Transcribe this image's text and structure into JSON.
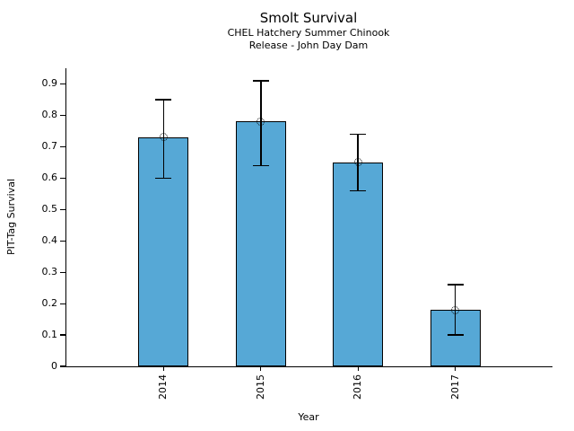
{
  "chart_data": {
    "type": "bar",
    "title": "Smolt Survival",
    "subtitle_lines": [
      "CHEL Hatchery Summer Chinook",
      "Release - John Day Dam"
    ],
    "xlabel": "Year",
    "ylabel": "PIT-Tag Survival",
    "categories": [
      "2014",
      "2015",
      "2016",
      "2017"
    ],
    "values": [
      0.73,
      0.78,
      0.65,
      0.18
    ],
    "error_low": [
      0.6,
      0.64,
      0.56,
      0.1
    ],
    "error_high": [
      0.85,
      0.91,
      0.74,
      0.26
    ],
    "yticks": [
      0,
      0.1,
      0.2,
      0.3,
      0.4,
      0.5,
      0.6,
      0.7,
      0.8,
      0.9
    ],
    "ytick_labels": [
      "0",
      "0.1",
      "0.2",
      "0.3",
      "0.4",
      "0.5",
      "0.6",
      "0.7",
      "0.8",
      "0.9"
    ],
    "ylim": [
      0,
      0.95
    ],
    "bar_color": "#56a8d6",
    "bar_edge_color": "#000000",
    "error_color": "#000000",
    "marker": "open-circle",
    "grid": false,
    "legend": "none",
    "background": "#ffffff"
  }
}
